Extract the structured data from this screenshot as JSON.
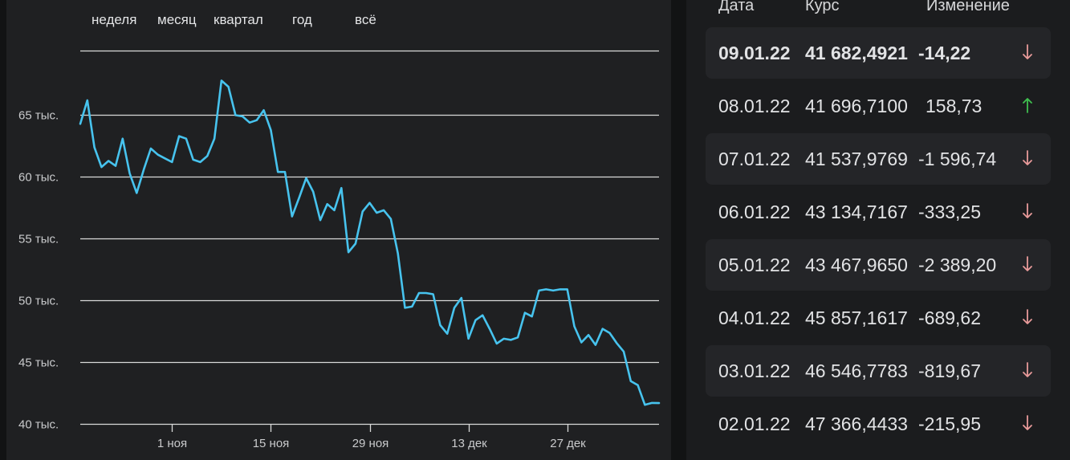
{
  "range_tabs": [
    "неделя",
    "месяц",
    "квартал",
    "год",
    "всё"
  ],
  "table": {
    "headers": {
      "date": "Дата",
      "rate": "Курс",
      "change": "Изменение"
    },
    "rows": [
      {
        "date": "09.01.22",
        "rate": "41 682,4921",
        "change": "-14,22",
        "direction": "down"
      },
      {
        "date": "08.01.22",
        "rate": "41 696,7100",
        "change": "158,73",
        "direction": "up"
      },
      {
        "date": "07.01.22",
        "rate": "41 537,9769",
        "change": "-1 596,74",
        "direction": "down"
      },
      {
        "date": "06.01.22",
        "rate": "43 134,7167",
        "change": "-333,25",
        "direction": "down"
      },
      {
        "date": "05.01.22",
        "rate": "43 467,9650",
        "change": "-2 389,20",
        "direction": "down"
      },
      {
        "date": "04.01.22",
        "rate": "45 857,1617",
        "change": "-689,62",
        "direction": "down"
      },
      {
        "date": "03.01.22",
        "rate": "46 546,7783",
        "change": "-819,67",
        "direction": "down"
      },
      {
        "date": "02.01.22",
        "rate": "47 366,4433",
        "change": "-215,95",
        "direction": "down"
      }
    ]
  },
  "colors": {
    "line": "#47c3ee",
    "arrow_down": "#e89a9a",
    "arrow_up": "#3fbf4f",
    "gridline": "#d9d9d9",
    "chart_background": "#1f2022",
    "table_background": "#1b1c1e"
  },
  "chart_data": {
    "type": "line",
    "title": "",
    "xlabel": "",
    "ylabel": "",
    "ylim": [
      40000,
      70000
    ],
    "yticks": [
      {
        "value": 40000,
        "label": "40 тыс."
      },
      {
        "value": 45000,
        "label": "45 тыс."
      },
      {
        "value": 50000,
        "label": "50 тыс."
      },
      {
        "value": 55000,
        "label": "55 тыс."
      },
      {
        "value": 60000,
        "label": "60 тыс."
      },
      {
        "value": 65000,
        "label": "65 тыс."
      }
    ],
    "xlim": [
      "2021-10-19",
      "2022-01-09"
    ],
    "xticks": [
      {
        "date": "2021-11-01",
        "label": "1 ноя"
      },
      {
        "date": "2021-11-15",
        "label": "15 ноя"
      },
      {
        "date": "2021-11-29",
        "label": "29 ноя"
      },
      {
        "date": "2021-12-13",
        "label": "13 дек"
      },
      {
        "date": "2021-12-27",
        "label": "27 дек"
      }
    ],
    "grid": true,
    "series": [
      {
        "x": [
          "2021-10-19",
          "2021-10-20",
          "2021-10-21",
          "2021-10-22",
          "2021-10-23",
          "2021-10-24",
          "2021-10-25",
          "2021-10-26",
          "2021-10-27",
          "2021-10-28",
          "2021-10-29",
          "2021-10-30",
          "2021-10-31",
          "2021-11-01",
          "2021-11-02",
          "2021-11-03",
          "2021-11-04",
          "2021-11-05",
          "2021-11-06",
          "2021-11-07",
          "2021-11-08",
          "2021-11-09",
          "2021-11-10",
          "2021-11-11",
          "2021-11-12",
          "2021-11-13",
          "2021-11-14",
          "2021-11-15",
          "2021-11-16",
          "2021-11-17",
          "2021-11-18",
          "2021-11-19",
          "2021-11-20",
          "2021-11-21",
          "2021-11-22",
          "2021-11-23",
          "2021-11-24",
          "2021-11-25",
          "2021-11-26",
          "2021-11-27",
          "2021-11-28",
          "2021-11-29",
          "2021-11-30",
          "2021-12-01",
          "2021-12-02",
          "2021-12-03",
          "2021-12-04",
          "2021-12-05",
          "2021-12-06",
          "2021-12-07",
          "2021-12-08",
          "2021-12-09",
          "2021-12-10",
          "2021-12-11",
          "2021-12-12",
          "2021-12-13",
          "2021-12-14",
          "2021-12-15",
          "2021-12-16",
          "2021-12-17",
          "2021-12-18",
          "2021-12-19",
          "2021-12-20",
          "2021-12-21",
          "2021-12-22",
          "2021-12-23",
          "2021-12-24",
          "2021-12-25",
          "2021-12-26",
          "2021-12-27",
          "2021-12-28",
          "2021-12-29",
          "2021-12-30",
          "2021-12-31",
          "2022-01-01",
          "2022-01-02",
          "2022-01-03",
          "2022-01-04",
          "2022-01-05",
          "2022-01-06",
          "2022-01-07",
          "2022-01-08",
          "2022-01-09"
        ],
        "y": [
          64300,
          66200,
          62400,
          60800,
          61300,
          60900,
          63100,
          60300,
          58700,
          60600,
          62300,
          61800,
          61500,
          61200,
          63300,
          63100,
          61400,
          61200,
          61700,
          63100,
          67800,
          67300,
          65000,
          64900,
          64400,
          64600,
          65400,
          63800,
          60400,
          60400,
          56800,
          58300,
          59900,
          58800,
          56500,
          57800,
          57300,
          59100,
          53900,
          54600,
          57200,
          57900,
          57100,
          57300,
          56600,
          53800,
          49400,
          49500,
          50600,
          50600,
          50500,
          48000,
          47300,
          49400,
          50200,
          46900,
          48400,
          48800,
          47700,
          46500,
          46900,
          46800,
          47000,
          49000,
          48700,
          50800,
          50900,
          50800,
          50900,
          50900,
          47900,
          46600,
          47200,
          46400,
          47700,
          47366,
          46547,
          45857,
          43468,
          43135,
          41538,
          41697,
          41682
        ]
      }
    ]
  }
}
